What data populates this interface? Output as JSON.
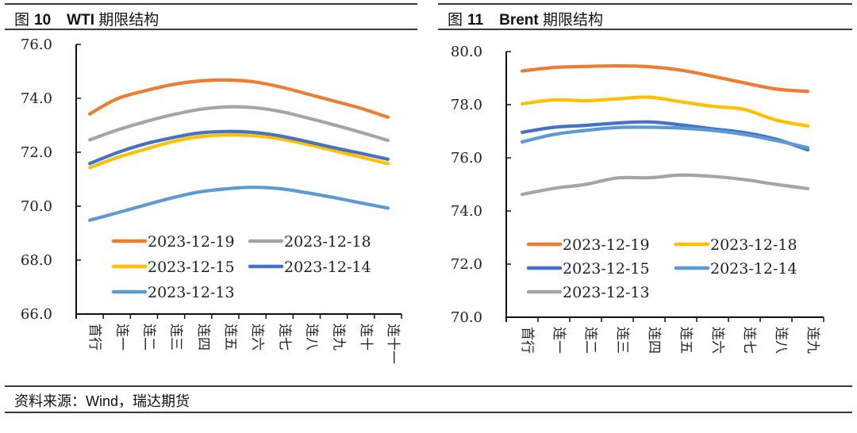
{
  "header": {
    "left": {
      "prefix": "图",
      "number": "10",
      "name_en": "WTI",
      "name_cn": "期限结构"
    },
    "right": {
      "prefix": "图",
      "number": "11",
      "name_en": "Brent",
      "name_cn": "期限结构"
    }
  },
  "footer": {
    "source": "资料来源：Wind，瑞达期货"
  },
  "chart_data": [
    {
      "type": "line",
      "title": "图 10 WTI 期限结构",
      "xlabel": "",
      "ylabel": "",
      "ylim": [
        66.0,
        76.0
      ],
      "yticks": [
        "66.0",
        "68.0",
        "70.0",
        "72.0",
        "74.0",
        "76.0"
      ],
      "grid": false,
      "legend_position": "bottom-left-inside",
      "categories": [
        "首行",
        "连一",
        "连二",
        "连三",
        "连四",
        "连五",
        "连六",
        "连七",
        "连八",
        "连九",
        "连十",
        "连十一"
      ],
      "series": [
        {
          "name": "2023-12-19",
          "color": "#ED7D31",
          "values": [
            73.42,
            73.98,
            74.27,
            74.5,
            74.64,
            74.68,
            74.62,
            74.43,
            74.17,
            73.9,
            73.63,
            73.3
          ]
        },
        {
          "name": "2023-12-18",
          "color": "#A5A5A5",
          "values": [
            72.46,
            72.82,
            73.12,
            73.38,
            73.58,
            73.68,
            73.66,
            73.52,
            73.28,
            73.02,
            72.74,
            72.44
          ]
        },
        {
          "name": "2023-12-15",
          "color": "#FFC000",
          "values": [
            71.43,
            71.8,
            72.1,
            72.38,
            72.57,
            72.64,
            72.62,
            72.5,
            72.3,
            72.06,
            71.82,
            71.58
          ]
        },
        {
          "name": "2023-12-14",
          "color": "#4472C4",
          "values": [
            71.58,
            71.98,
            72.3,
            72.53,
            72.71,
            72.77,
            72.74,
            72.61,
            72.4,
            72.17,
            71.96,
            71.74
          ]
        },
        {
          "name": "2023-12-13",
          "color": "#5B9BD5",
          "values": [
            69.48,
            69.75,
            70.03,
            70.3,
            70.52,
            70.64,
            70.7,
            70.65,
            70.5,
            70.32,
            70.12,
            69.93
          ]
        }
      ]
    },
    {
      "type": "line",
      "title": "图 11 Brent 期限结构",
      "xlabel": "",
      "ylabel": "",
      "ylim": [
        70.0,
        80.0
      ],
      "yticks": [
        "70.0",
        "72.0",
        "74.0",
        "76.0",
        "78.0",
        "80.0"
      ],
      "grid": false,
      "legend_position": "bottom-left-inside",
      "categories": [
        "首行",
        "连一",
        "连二",
        "连三",
        "连四",
        "连五",
        "连六",
        "连七",
        "连八",
        "连九"
      ],
      "series": [
        {
          "name": "2023-12-19",
          "color": "#ED7D31",
          "values": [
            79.27,
            79.4,
            79.44,
            79.46,
            79.43,
            79.3,
            79.07,
            78.82,
            78.59,
            78.5
          ]
        },
        {
          "name": "2023-12-18",
          "color": "#FFC000",
          "values": [
            78.03,
            78.18,
            78.15,
            78.22,
            78.28,
            78.11,
            77.94,
            77.82,
            77.42,
            77.2
          ]
        },
        {
          "name": "2023-12-15",
          "color": "#4472C4",
          "values": [
            76.96,
            77.15,
            77.22,
            77.31,
            77.35,
            77.24,
            77.09,
            76.95,
            76.7,
            76.3
          ]
        },
        {
          "name": "2023-12-14",
          "color": "#5B9BD5",
          "values": [
            76.6,
            76.88,
            77.03,
            77.14,
            77.15,
            77.12,
            77.03,
            76.88,
            76.65,
            76.38
          ]
        },
        {
          "name": "2023-12-13",
          "color": "#A5A5A5",
          "values": [
            74.62,
            74.85,
            75.0,
            75.24,
            75.25,
            75.35,
            75.3,
            75.18,
            75.0,
            74.84
          ]
        }
      ]
    }
  ]
}
